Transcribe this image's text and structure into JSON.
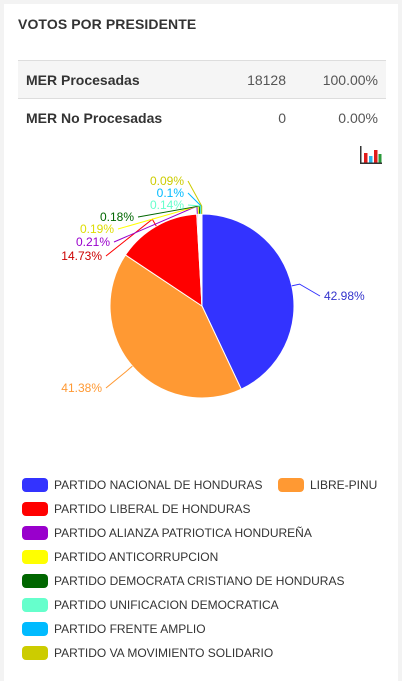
{
  "title": "VOTOS POR PRESIDENTE",
  "stats": [
    {
      "label": "MER Procesadas",
      "count": "18128",
      "percent": "100.00%"
    },
    {
      "label": "MER No Procesadas",
      "count": "0",
      "percent": "0.00%"
    }
  ],
  "icons": {
    "chart_toggle": "bar-chart-icon"
  },
  "chart_data": {
    "type": "pie",
    "title": "",
    "legend_position": "bottom",
    "series": [
      {
        "name": "PARTIDO NACIONAL DE HONDURAS",
        "value": 42.98,
        "label": "42.98%",
        "color": "#3333ff"
      },
      {
        "name": "LIBRE-PINU",
        "value": 41.38,
        "label": "41.38%",
        "color": "#ff9933"
      },
      {
        "name": "PARTIDO LIBERAL DE HONDURAS",
        "value": 14.73,
        "label": "14.73%",
        "color": "#ff0000"
      },
      {
        "name": "PARTIDO ALIANZA PATRIOTICA HONDUREÑA",
        "value": 0.21,
        "label": "0.21%",
        "color": "#9900cc"
      },
      {
        "name": "PARTIDO ANTICORRUPCION",
        "value": 0.19,
        "label": "0.19%",
        "color": "#ffff00"
      },
      {
        "name": "PARTIDO DEMOCRATA CRISTIANO DE HONDURAS",
        "value": 0.18,
        "label": "0.18%",
        "color": "#006600"
      },
      {
        "name": "PARTIDO UNIFICACION DEMOCRATICA",
        "value": 0.14,
        "label": "0.14%",
        "color": "#66ffcc"
      },
      {
        "name": "PARTIDO FRENTE AMPLIO",
        "value": 0.1,
        "label": "0.1%",
        "color": "#00bbff"
      },
      {
        "name": "PARTIDO VA MOVIMIENTO SOLIDARIO",
        "value": 0.09,
        "label": "0.09%",
        "color": "#cccc00"
      }
    ]
  }
}
